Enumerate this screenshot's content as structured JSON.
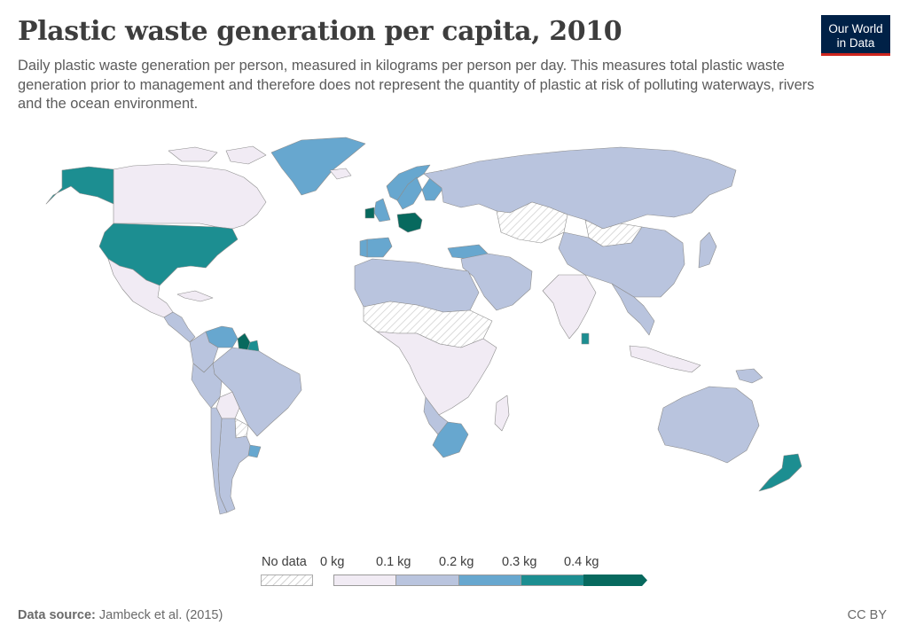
{
  "header": {
    "title": "Plastic waste generation per capita, 2010",
    "subtitle": "Daily plastic waste generation per person, measured in kilograms per person per day. This measures total plastic waste generation prior to management and therefore does not represent the quantity of plastic at risk of polluting waterways, rivers and the ocean environment.",
    "logo_line1": "Our World",
    "logo_line2": "in Data"
  },
  "legend": {
    "no_data_label": "No data",
    "ticks": [
      "0 kg",
      "0.1 kg",
      "0.2 kg",
      "0.3 kg",
      "0.4 kg"
    ],
    "colors": [
      "#f1ebf4",
      "#b9c4de",
      "#67a7cf",
      "#1c8e91",
      "#07695e"
    ],
    "no_data_color": "#cccccc"
  },
  "footer": {
    "source_label": "Data source:",
    "source_value": "Jambeck et al. (2015)",
    "license": "CC BY"
  },
  "chart_data": {
    "type": "choropleth",
    "unit": "kg per person per day",
    "bins": [
      {
        "range": [
          0,
          0.1
        ],
        "color": "#f1ebf4"
      },
      {
        "range": [
          0.1,
          0.2
        ],
        "color": "#b9c4de"
      },
      {
        "range": [
          0.2,
          0.3
        ],
        "color": "#67a7cf"
      },
      {
        "range": [
          0.3,
          0.4
        ],
        "color": "#1c8e91"
      },
      {
        "range": [
          0.4,
          null
        ],
        "color": "#07695e"
      }
    ],
    "regions": [
      {
        "name": "Canada",
        "bin": 0
      },
      {
        "name": "Alaska (United States)",
        "bin": 3
      },
      {
        "name": "United States",
        "bin": 3
      },
      {
        "name": "Greenland",
        "bin": 2
      },
      {
        "name": "Mexico",
        "bin": 0
      },
      {
        "name": "Central America",
        "bin": 1
      },
      {
        "name": "Cuba",
        "bin": 0
      },
      {
        "name": "Venezuela",
        "bin": 2
      },
      {
        "name": "Guyana",
        "bin": 4
      },
      {
        "name": "Suriname",
        "bin": 3
      },
      {
        "name": "Colombia",
        "bin": 1
      },
      {
        "name": "Brazil",
        "bin": 1
      },
      {
        "name": "Peru",
        "bin": 1
      },
      {
        "name": "Bolivia",
        "bin": 0
      },
      {
        "name": "Paraguay",
        "bin": null
      },
      {
        "name": "Uruguay",
        "bin": 2
      },
      {
        "name": "Argentina",
        "bin": 1
      },
      {
        "name": "Chile",
        "bin": 1
      },
      {
        "name": "Iceland",
        "bin": 0
      },
      {
        "name": "Norway",
        "bin": 2
      },
      {
        "name": "Sweden",
        "bin": 2
      },
      {
        "name": "Finland",
        "bin": 2
      },
      {
        "name": "United Kingdom",
        "bin": 2
      },
      {
        "name": "Ireland",
        "bin": 4
      },
      {
        "name": "Germany",
        "bin": 4
      },
      {
        "name": "Spain",
        "bin": 2
      },
      {
        "name": "Portugal",
        "bin": 2
      },
      {
        "name": "Turkey",
        "bin": 2
      },
      {
        "name": "Russia",
        "bin": 1
      },
      {
        "name": "Kazakhstan",
        "bin": null
      },
      {
        "name": "Mongolia",
        "bin": null
      },
      {
        "name": "China",
        "bin": 1
      },
      {
        "name": "Japan",
        "bin": 1
      },
      {
        "name": "India",
        "bin": 0
      },
      {
        "name": "Sri Lanka",
        "bin": 3
      },
      {
        "name": "Southeast Asia",
        "bin": 1
      },
      {
        "name": "Indonesia",
        "bin": 0
      },
      {
        "name": "Middle East",
        "bin": 1
      },
      {
        "name": "North Africa",
        "bin": 1
      },
      {
        "name": "Sahel",
        "bin": null
      },
      {
        "name": "Central Africa",
        "bin": 0
      },
      {
        "name": "Namibia and Botswana",
        "bin": 1
      },
      {
        "name": "South Africa",
        "bin": 2
      },
      {
        "name": "Madagascar",
        "bin": 0
      },
      {
        "name": "Australia",
        "bin": 1
      },
      {
        "name": "New Zealand",
        "bin": 3
      },
      {
        "name": "Papua New Guinea",
        "bin": 1
      }
    ]
  }
}
